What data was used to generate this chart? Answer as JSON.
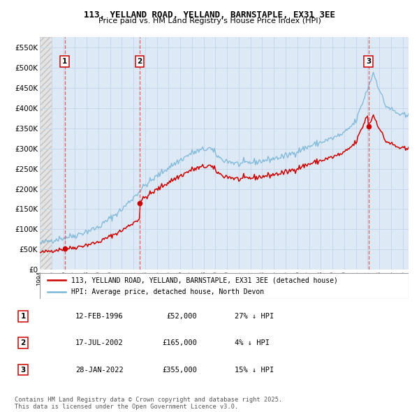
{
  "title": "113, YELLAND ROAD, YELLAND, BARNSTAPLE, EX31 3EE",
  "subtitle": "Price paid vs. HM Land Registry's House Price Index (HPI)",
  "ylim": [
    0,
    575000
  ],
  "yticks": [
    0,
    50000,
    100000,
    150000,
    200000,
    250000,
    300000,
    350000,
    400000,
    450000,
    500000,
    550000
  ],
  "ytick_labels": [
    "£0",
    "£50K",
    "£100K",
    "£150K",
    "£200K",
    "£250K",
    "£300K",
    "£350K",
    "£400K",
    "£450K",
    "£500K",
    "£550K"
  ],
  "xlim_start": 1994.0,
  "xlim_end": 2025.5,
  "hpi_color": "#7ab6d8",
  "price_color": "#cc0000",
  "grid_color": "#c8d8ea",
  "chart_bg_color": "#ddeaf5",
  "hatch_bg_color": "#e0e0e0",
  "sale_dates": [
    1996.12,
    2002.54,
    2022.08
  ],
  "sale_prices": [
    52000,
    165000,
    355000
  ],
  "sale_labels": [
    "1",
    "2",
    "3"
  ],
  "legend_property_label": "113, YELLAND ROAD, YELLAND, BARNSTAPLE, EX31 3EE (detached house)",
  "legend_hpi_label": "HPI: Average price, detached house, North Devon",
  "table_rows": [
    [
      "1",
      "12-FEB-1996",
      "£52,000",
      "27% ↓ HPI"
    ],
    [
      "2",
      "17-JUL-2002",
      "£165,000",
      "4% ↓ HPI"
    ],
    [
      "3",
      "28-JAN-2022",
      "£355,000",
      "15% ↓ HPI"
    ]
  ],
  "footnote": "Contains HM Land Registry data © Crown copyright and database right 2025.\nThis data is licensed under the Open Government Licence v3.0."
}
